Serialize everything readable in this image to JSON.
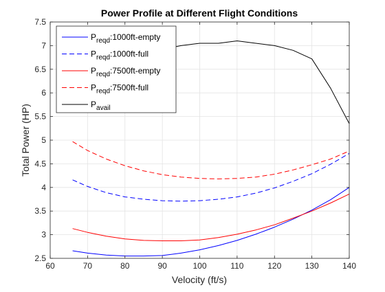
{
  "chart_data": {
    "type": "line",
    "title": "Power Profile at Different Flight Conditions",
    "xlabel": "Velocity (ft/s)",
    "ylabel": "Total Power (HP)",
    "xlim": [
      60,
      140
    ],
    "ylim": [
      2.5,
      7.5
    ],
    "xticks": [
      "60",
      "70",
      "80",
      "90",
      "100",
      "110",
      "120",
      "130",
      "140"
    ],
    "yticks": [
      "2.5",
      "3",
      "3.5",
      "4",
      "4.5",
      "5",
      "5.5",
      "6",
      "6.5",
      "7",
      "7.5"
    ],
    "grid": true,
    "legend_position": "top-left",
    "series": [
      {
        "name": "P_reqd:1000ft-empty",
        "legend": {
          "main": "P",
          "sub": "reqd",
          "rest": ":1000ft-empty"
        },
        "color": "#0000ff",
        "dash": "solid",
        "x": [
          66,
          70,
          75,
          80,
          85,
          90,
          95,
          100,
          105,
          110,
          115,
          120,
          125,
          130,
          135,
          140
        ],
        "y": [
          2.66,
          2.61,
          2.57,
          2.55,
          2.55,
          2.56,
          2.61,
          2.68,
          2.77,
          2.88,
          3.01,
          3.16,
          3.33,
          3.52,
          3.74,
          4.0
        ]
      },
      {
        "name": "P_reqd:1000ft-full",
        "legend": {
          "main": "P",
          "sub": "reqd",
          "rest": ":1000ft-full"
        },
        "color": "#0000ff",
        "dash": "dashed",
        "x": [
          66,
          70,
          75,
          80,
          85,
          90,
          95,
          100,
          105,
          110,
          115,
          120,
          125,
          130,
          135,
          140
        ],
        "y": [
          4.16,
          4.02,
          3.89,
          3.8,
          3.75,
          3.72,
          3.71,
          3.72,
          3.75,
          3.8,
          3.88,
          3.99,
          4.13,
          4.29,
          4.49,
          4.72
        ]
      },
      {
        "name": "P_reqd:7500ft-empty",
        "legend": {
          "main": "P",
          "sub": "reqd",
          "rest": ":7500ft-empty"
        },
        "color": "#ff0000",
        "dash": "solid",
        "x": [
          66,
          70,
          75,
          80,
          85,
          90,
          95,
          100,
          105,
          110,
          115,
          120,
          125,
          130,
          135,
          140
        ],
        "y": [
          3.13,
          3.05,
          2.97,
          2.91,
          2.88,
          2.87,
          2.87,
          2.89,
          2.94,
          3.01,
          3.1,
          3.21,
          3.35,
          3.5,
          3.67,
          3.86
        ]
      },
      {
        "name": "P_reqd:7500ft-full",
        "legend": {
          "main": "P",
          "sub": "reqd",
          "rest": ":7500ft-full"
        },
        "color": "#ff0000",
        "dash": "dashed",
        "x": [
          66,
          70,
          75,
          80,
          85,
          90,
          95,
          100,
          105,
          110,
          115,
          120,
          125,
          130,
          135,
          140
        ],
        "y": [
          4.97,
          4.78,
          4.6,
          4.46,
          4.35,
          4.27,
          4.22,
          4.19,
          4.18,
          4.19,
          4.22,
          4.28,
          4.37,
          4.48,
          4.6,
          4.77
        ]
      },
      {
        "name": "P_avail",
        "legend": {
          "main": "P",
          "sub": "avail",
          "rest": ""
        },
        "color": "#000000",
        "dash": "solid",
        "x": [
          66,
          70,
          75,
          80,
          85,
          90,
          95,
          100,
          105,
          110,
          115,
          120,
          125,
          130,
          135,
          140
        ],
        "y": [
          6.5,
          6.6,
          6.73,
          6.83,
          6.91,
          6.92,
          7.0,
          7.05,
          7.05,
          7.1,
          7.05,
          7.0,
          6.9,
          6.72,
          6.1,
          5.35
        ]
      }
    ]
  }
}
